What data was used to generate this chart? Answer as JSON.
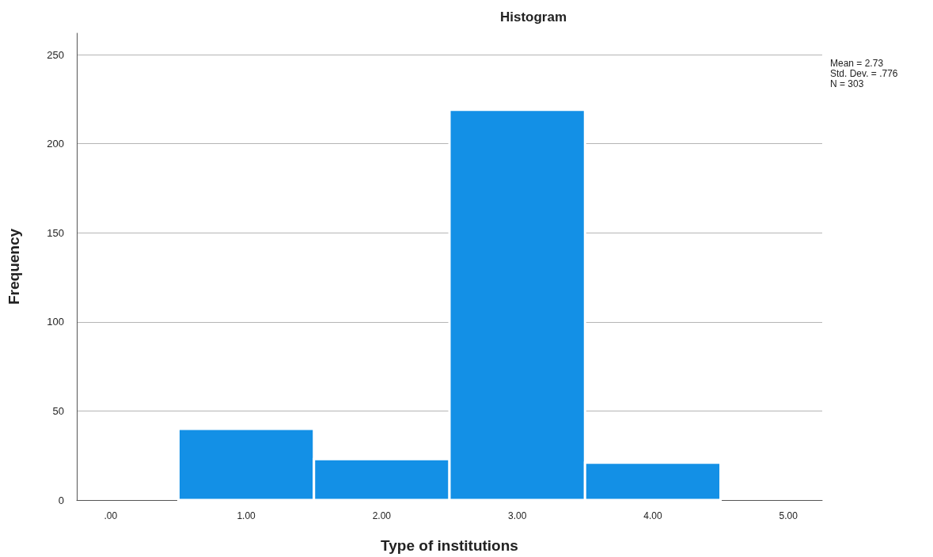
{
  "chart_data": {
    "type": "histogram",
    "title": "Histogram",
    "xlabel": "Type of institutions",
    "ylabel": "Frequency",
    "bins": [
      0.5,
      1.5,
      2.5,
      3.5,
      4.5
    ],
    "values": [
      40,
      23,
      219,
      21
    ],
    "color": "#1390e6",
    "xlim": [
      -0.25,
      5.25
    ],
    "xticks": [
      {
        "value": 0,
        "label": ".00"
      },
      {
        "value": 1,
        "label": "1.00"
      },
      {
        "value": 2,
        "label": "2.00"
      },
      {
        "value": 3,
        "label": "3.00"
      },
      {
        "value": 4,
        "label": "4.00"
      },
      {
        "value": 5,
        "label": "5.00"
      }
    ],
    "ylim": [
      0,
      262
    ],
    "yticks": [
      0,
      50,
      100,
      150,
      200,
      250
    ],
    "grid": "y",
    "annotations": [
      "Mean = 2.73",
      "Std. Dev. = .776",
      "N = 303"
    ]
  }
}
